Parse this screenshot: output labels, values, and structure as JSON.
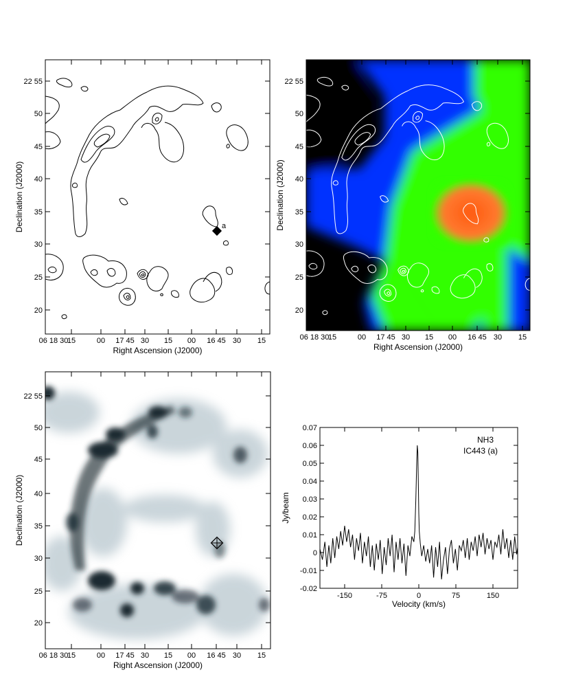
{
  "panels": [
    {
      "id": "contour",
      "xlabel": "Right Ascension (J2000)",
      "ylabel": "Declination (J2000)",
      "x_ticks": [
        "06 18 30",
        "15",
        "00",
        "17 45",
        "30",
        "15",
        "00",
        "16 45",
        "30",
        "15"
      ],
      "y_ticks": [
        "22 55",
        "50",
        "45",
        "40",
        "35",
        "30",
        "25",
        "20"
      ],
      "marker_label": "a"
    },
    {
      "id": "color-map",
      "xlabel": "Right Ascension (J2000)",
      "ylabel": "Declination (J2000)",
      "x_ticks": [
        "06 18 30",
        "15",
        "00",
        "17 45",
        "30",
        "15",
        "00",
        "16 45",
        "30",
        "15"
      ],
      "y_ticks": [
        "22 55",
        "50",
        "45",
        "40",
        "35",
        "30",
        "25",
        "20"
      ]
    },
    {
      "id": "greyscale",
      "xlabel": "Right Ascension (J2000)",
      "ylabel": "Declination (J2000)",
      "x_ticks": [
        "06 18 30",
        "15",
        "00",
        "17 45",
        "30",
        "15",
        "00",
        "16 45",
        "30",
        "15"
      ],
      "y_ticks": [
        "22 55",
        "50",
        "45",
        "40",
        "35",
        "30",
        "25",
        "20"
      ]
    }
  ],
  "chart_data": {
    "type": "line",
    "legend": [
      "NH3",
      "IC443 (a)"
    ],
    "xlabel": "Velocity (km/s)",
    "ylabel": "Jy/beam",
    "xlim": [
      -200,
      200
    ],
    "ylim": [
      -0.02,
      0.07
    ],
    "x_ticks": [
      -150,
      -75,
      0,
      75,
      150
    ],
    "y_ticks": [
      "0.07",
      "0.06",
      "0.05",
      "0.04",
      "0.03",
      "0.02",
      "0.01",
      "0",
      "-0.01",
      "-0.02"
    ],
    "series": [
      {
        "values": [
          [
            -200,
            0.002
          ],
          [
            -195,
            -0.004
          ],
          [
            -190,
            0.006
          ],
          [
            -186,
            -0.008
          ],
          [
            -182,
            0.004
          ],
          [
            -178,
            -0.006
          ],
          [
            -174,
            0.008
          ],
          [
            -170,
            -0.003
          ],
          [
            -166,
            0.009
          ],
          [
            -162,
            0.002
          ],
          [
            -158,
            0.012
          ],
          [
            -154,
            0.004
          ],
          [
            -150,
            0.015
          ],
          [
            -146,
            0.006
          ],
          [
            -142,
            0.013
          ],
          [
            -138,
            0.003
          ],
          [
            -134,
            0.01
          ],
          [
            -130,
            -0.004
          ],
          [
            -126,
            0.008
          ],
          [
            -122,
            0.001
          ],
          [
            -118,
            0.011
          ],
          [
            -114,
            -0.006
          ],
          [
            -110,
            0.006
          ],
          [
            -106,
            -0.002
          ],
          [
            -102,
            0.009
          ],
          [
            -98,
            -0.008
          ],
          [
            -94,
            0.004
          ],
          [
            -90,
            -0.01
          ],
          [
            -86,
            0.005
          ],
          [
            -82,
            -0.004
          ],
          [
            -78,
            0.007
          ],
          [
            -74,
            -0.012
          ],
          [
            -70,
            0.003
          ],
          [
            -66,
            -0.007
          ],
          [
            -62,
            0.008
          ],
          [
            -58,
            -0.002
          ],
          [
            -54,
            0.01
          ],
          [
            -50,
            -0.011
          ],
          [
            -46,
            0.006
          ],
          [
            -42,
            -0.004
          ],
          [
            -38,
            0.008
          ],
          [
            -34,
            -0.006
          ],
          [
            -30,
            0.005
          ],
          [
            -26,
            -0.013
          ],
          [
            -22,
            0.004
          ],
          [
            -18,
            -0.002
          ],
          [
            -14,
            0.009
          ],
          [
            -10,
            0.006
          ],
          [
            -8,
            0.012
          ],
          [
            -6,
            0.03
          ],
          [
            -4,
            0.052
          ],
          [
            -3,
            0.06
          ],
          [
            -2,
            0.056
          ],
          [
            -1,
            0.04
          ],
          [
            0,
            0.022
          ],
          [
            1,
            0.012
          ],
          [
            3,
            0.005
          ],
          [
            6,
            -0.002
          ],
          [
            10,
            0.004
          ],
          [
            14,
            -0.005
          ],
          [
            18,
            0.002
          ],
          [
            22,
            -0.006
          ],
          [
            26,
            0.004
          ],
          [
            30,
            -0.014
          ],
          [
            34,
            0.003
          ],
          [
            38,
            -0.008
          ],
          [
            42,
            0.006
          ],
          [
            46,
            -0.015
          ],
          [
            50,
            -0.004
          ],
          [
            54,
            0.003
          ],
          [
            58,
            -0.012
          ],
          [
            62,
            0.002
          ],
          [
            66,
            0.007
          ],
          [
            70,
            -0.006
          ],
          [
            74,
            0.002
          ],
          [
            78,
            -0.01
          ],
          [
            82,
            0.004
          ],
          [
            86,
            0.001
          ],
          [
            90,
            0.007
          ],
          [
            94,
            -0.003
          ],
          [
            98,
            0.008
          ],
          [
            102,
            -0.004
          ],
          [
            106,
            0.006
          ],
          [
            110,
            0.001
          ],
          [
            114,
            0.009
          ],
          [
            118,
            -0.002
          ],
          [
            122,
            0.01
          ],
          [
            126,
            0.003
          ],
          [
            130,
            0.011
          ],
          [
            134,
            -0.001
          ],
          [
            138,
            0.008
          ],
          [
            142,
            0.002
          ],
          [
            146,
            0.007
          ],
          [
            150,
            -0.004
          ],
          [
            154,
            0.006
          ],
          [
            158,
            0.003
          ],
          [
            162,
            0.01
          ],
          [
            166,
            -0.001
          ],
          [
            170,
            0.013
          ],
          [
            174,
            0.002
          ],
          [
            178,
            0.008
          ],
          [
            182,
            -0.003
          ],
          [
            186,
            0.007
          ],
          [
            190,
            -0.004
          ],
          [
            194,
            0.009
          ],
          [
            198,
            -0.001
          ],
          [
            200,
            0.003
          ]
        ]
      }
    ]
  },
  "colors": {
    "axis": "#000000",
    "peak": "#ff6a20",
    "green": "#33ff00",
    "blue": "#0040ff",
    "dark": "#000000",
    "grey_ink": "#16252c"
  }
}
